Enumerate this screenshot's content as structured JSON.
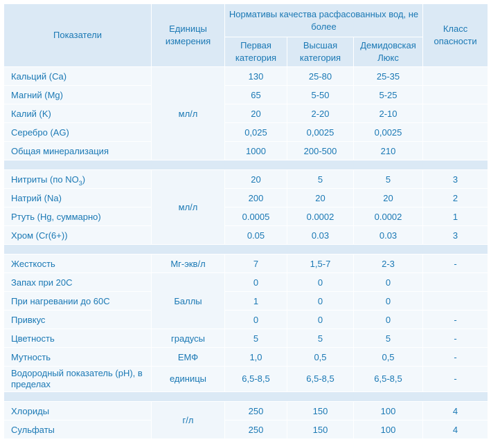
{
  "header": {
    "indicators": "Показатели",
    "units": "Единицы измерения",
    "norms": "Нормативы качества расфасованных вод, не более",
    "first": "Первая категория",
    "highest": "Высшая категория",
    "demidov": "Демидовская Люкс",
    "hazard": "Класс опасности"
  },
  "group1": {
    "unit": "мл/л",
    "rows": [
      {
        "name": "Кальций (Ca)",
        "first": "130",
        "highest": "25-80",
        "demidov": "25-35",
        "hazard": ""
      },
      {
        "name": "Магний (Mg)",
        "first": "65",
        "highest": "5-50",
        "demidov": "5-25",
        "hazard": ""
      },
      {
        "name": "Калий (K)",
        "first": "20",
        "highest": "2-20",
        "demidov": "2-10",
        "hazard": ""
      },
      {
        "name": "Серебро (AG)",
        "first": "0,025",
        "highest": "0,0025",
        "demidov": "0,0025",
        "hazard": ""
      },
      {
        "name": "Общая минерализация",
        "first": "1000",
        "highest": "200-500",
        "demidov": "210",
        "hazard": ""
      }
    ]
  },
  "group2": {
    "unit": "мл/л",
    "nitrite_prefix": "Нитриты (по NO",
    "nitrite_sub": "3",
    "nitrite_suffix": ")",
    "rows": [
      {
        "name": "Нитриты (по NO3)",
        "first": "20",
        "highest": "5",
        "demidov": "5",
        "hazard": "3"
      },
      {
        "name": "Натрий (Na)",
        "first": "200",
        "highest": "20",
        "demidov": "20",
        "hazard": "2"
      },
      {
        "name": "Ртуть (Hg, суммарно)",
        "first": "0.0005",
        "highest": "0.0002",
        "demidov": "0.0002",
        "hazard": "1"
      },
      {
        "name": "Хром (Cr(6+))",
        "first": "0.05",
        "highest": "0.03",
        "demidov": "0.03",
        "hazard": "3"
      }
    ]
  },
  "group3": {
    "rows": [
      {
        "name": "Жесткость",
        "unit": "Мг-экв/л",
        "first": "7",
        "highest": "1,5-7",
        "demidov": "2-3",
        "hazard": "-"
      },
      {
        "name": "Запах при 20С",
        "unit": "",
        "first": "0",
        "highest": "0",
        "demidov": "0",
        "hazard": ""
      },
      {
        "name": "При нагревании до 60С",
        "unit": "Баллы",
        "first": "1",
        "highest": "0",
        "demidov": "0",
        "hazard": ""
      },
      {
        "name": "Привкус",
        "unit": "",
        "first": "0",
        "highest": "0",
        "demidov": "0",
        "hazard": "-"
      },
      {
        "name": "Цветность",
        "unit": "градусы",
        "first": "5",
        "highest": "5",
        "demidov": "5",
        "hazard": "-"
      },
      {
        "name": "Мутность",
        "unit": "ЕМФ",
        "first": "1,0",
        "highest": "0,5",
        "demidov": "0,5",
        "hazard": "-"
      },
      {
        "name": "Водородный показатель (pH), в пределах",
        "unit": "единицы",
        "first": "6,5-8,5",
        "highest": "6,5-8,5",
        "demidov": "6,5-8,5",
        "hazard": "-"
      }
    ]
  },
  "group4": {
    "unit": "г/л",
    "rows": [
      {
        "name": "Хлориды",
        "first": "250",
        "highest": "150",
        "demidov": "100",
        "hazard": "4"
      },
      {
        "name": "Сульфаты",
        "first": "250",
        "highest": "150",
        "demidov": "100",
        "hazard": "4"
      }
    ]
  }
}
